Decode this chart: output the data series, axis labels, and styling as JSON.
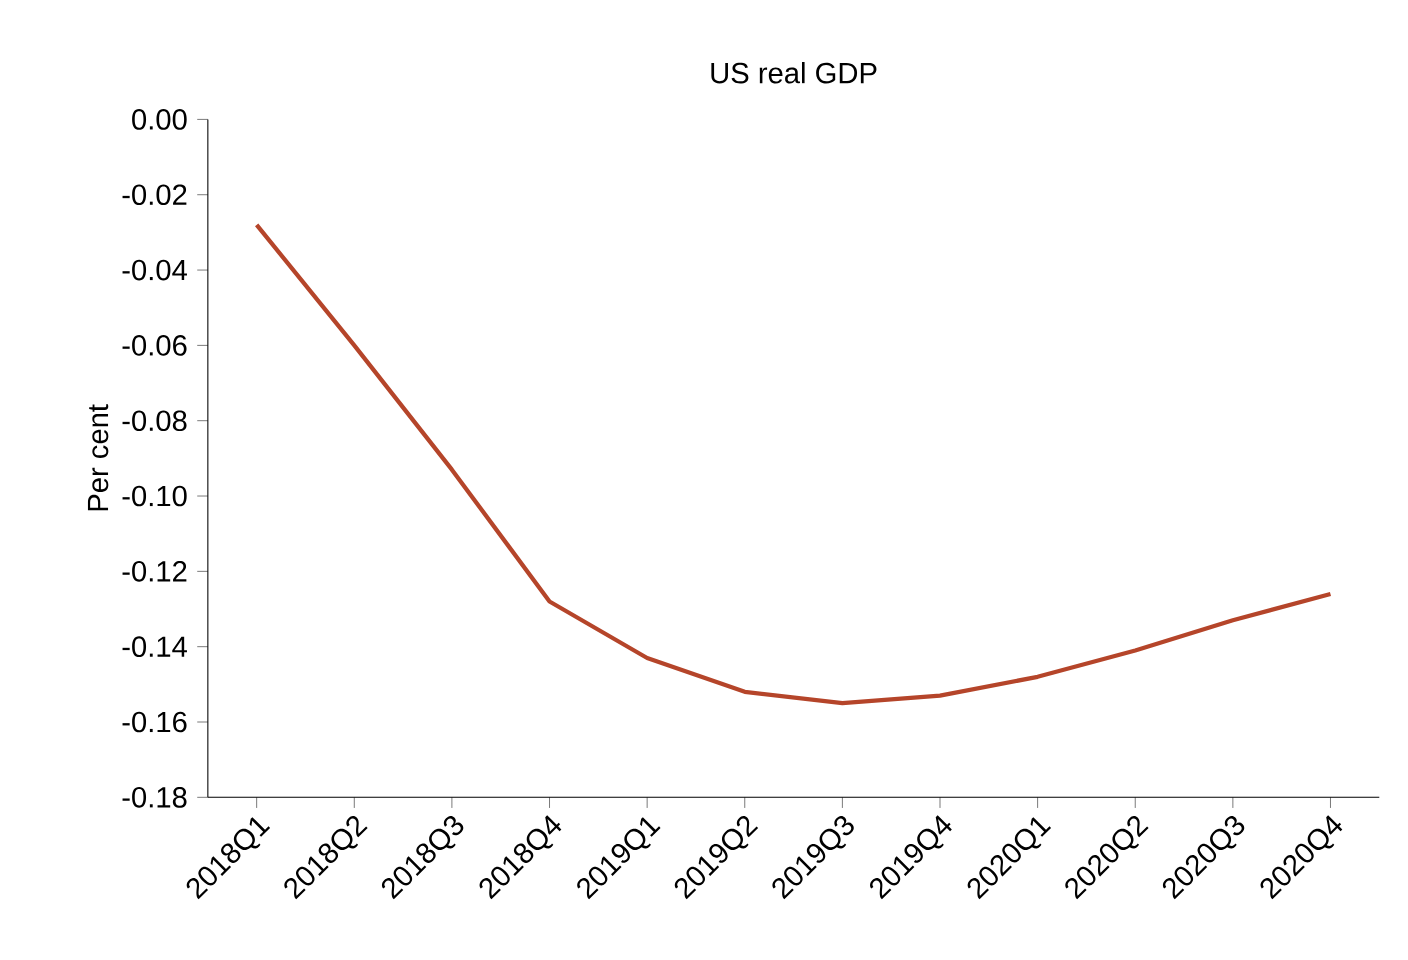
{
  "chart_data": {
    "type": "line",
    "title": "US real GDP",
    "ylabel": "Per cent",
    "categories": [
      "2018Q1",
      "2018Q2",
      "2018Q3",
      "2018Q4",
      "2019Q1",
      "2019Q2",
      "2019Q3",
      "2019Q4",
      "2020Q1",
      "2020Q2",
      "2020Q3",
      "2020Q4"
    ],
    "series": [
      {
        "color": "#b5452a",
        "values": [
          -0.028,
          -0.06,
          -0.093,
          -0.128,
          -0.143,
          -0.152,
          -0.155,
          -0.153,
          -0.148,
          -0.141,
          -0.133,
          -0.126
        ]
      }
    ],
    "ylim": [
      -0.18,
      0.0
    ],
    "yticks": [
      {
        "value": 0.0,
        "label": "0.00"
      },
      {
        "value": -0.02,
        "label": "-0.02"
      },
      {
        "value": -0.04,
        "label": "-0.04"
      },
      {
        "value": -0.06,
        "label": "-0.06"
      },
      {
        "value": -0.08,
        "label": "-0.08"
      },
      {
        "value": -0.1,
        "label": "-0.10"
      },
      {
        "value": -0.12,
        "label": "-0.12"
      },
      {
        "value": -0.14,
        "label": "-0.14"
      },
      {
        "value": -0.16,
        "label": "-0.16"
      },
      {
        "value": -0.18,
        "label": "-0.18"
      }
    ],
    "grid": false,
    "marker": "none",
    "line_style": "solid"
  }
}
